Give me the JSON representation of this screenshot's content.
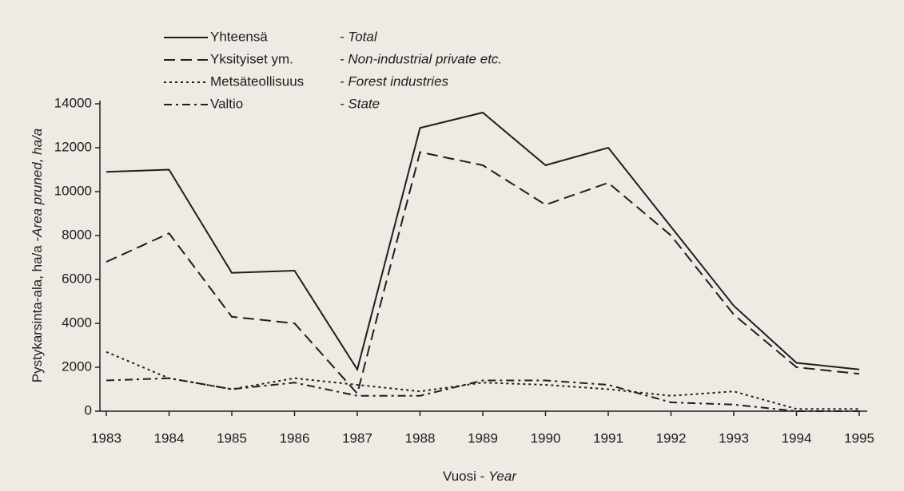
{
  "chart_data": {
    "type": "line",
    "ylabel": "Pystykarsinta-ala, ha/a -",
    "ylabel_en": "Area pruned, ha/a",
    "xlabel": "Vuosi - ",
    "xlabel_en": "Year",
    "categories": [
      "1983",
      "1984",
      "1985",
      "1986",
      "1987",
      "1988",
      "1989",
      "1990",
      "1991",
      "1992",
      "1993",
      "1994",
      "1995"
    ],
    "ylim": [
      0,
      14000
    ],
    "yticks": [
      0,
      2000,
      4000,
      6000,
      8000,
      10000,
      12000,
      14000
    ],
    "series": [
      {
        "name": "Yhteensä",
        "name_en": "- Total",
        "color": "#1e1e1e",
        "dash": "none",
        "values": [
          10900,
          11000,
          6300,
          6400,
          1900,
          12900,
          13600,
          11200,
          12000,
          8400,
          4800,
          2200,
          1900
        ]
      },
      {
        "name": "Yksityiset ym.",
        "name_en": "- Non-industrial private etc.",
        "color": "#1e1e1e",
        "dash": "14,7",
        "values": [
          6800,
          8100,
          4300,
          4000,
          800,
          11800,
          11200,
          9400,
          10400,
          8000,
          4400,
          2000,
          1700
        ]
      },
      {
        "name": "Metsäteollisuus",
        "name_en": "- Forest industries",
        "color": "#1e1e1e",
        "dash": "3,4",
        "values": [
          2700,
          1500,
          1000,
          1500,
          1200,
          900,
          1300,
          1200,
          1000,
          700,
          900,
          100,
          100
        ]
      },
      {
        "name": "Valtio",
        "name_en": "- State",
        "color": "#1e1e1e",
        "dash": "10,5,3,5",
        "values": [
          1400,
          1500,
          1000,
          1300,
          700,
          700,
          1400,
          1400,
          1200,
          400,
          300,
          0,
          0
        ]
      }
    ]
  }
}
